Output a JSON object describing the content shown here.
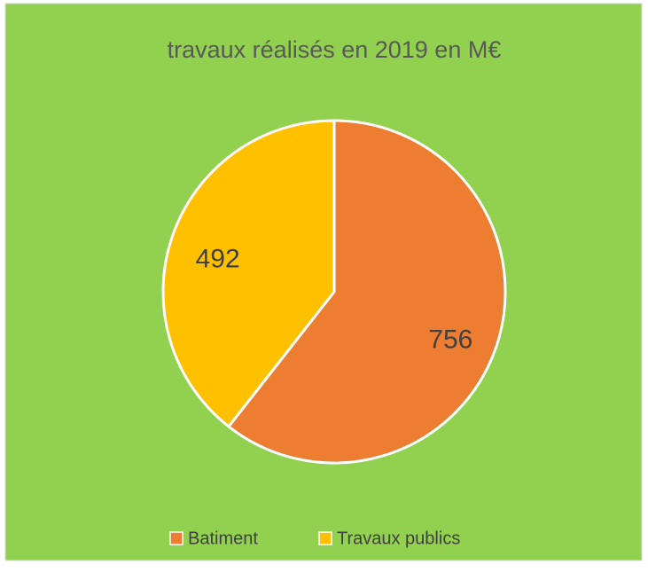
{
  "chart_data": {
    "type": "pie",
    "title": "travaux réalisés en 2019 en M€",
    "categories": [
      "Batiment",
      "Travaux publics"
    ],
    "values": [
      756,
      492
    ],
    "colors": [
      "#ed7d31",
      "#ffc000"
    ],
    "background": "#92d050",
    "legend": "bottom"
  }
}
